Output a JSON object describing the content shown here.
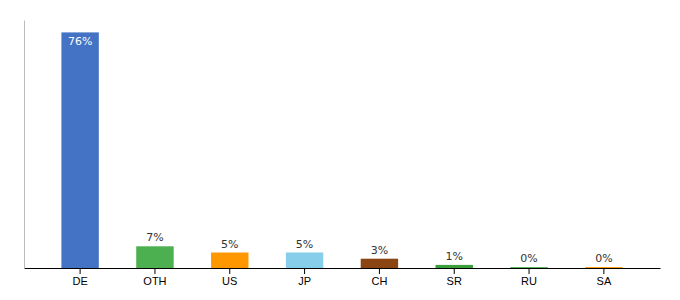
{
  "chart_data": {
    "type": "bar",
    "categories": [
      "DE",
      "OTH",
      "US",
      "JP",
      "CH",
      "SR",
      "RU",
      "SA"
    ],
    "values": [
      76,
      7,
      5,
      5,
      3,
      1,
      0.3,
      0.3
    ],
    "value_labels": [
      "76%",
      "7%",
      "5%",
      "5%",
      "3%",
      "1%",
      "0%",
      "0%"
    ],
    "colors": [
      "#4472c4",
      "#4caf50",
      "#ff9800",
      "#87ceeb",
      "#8B4513",
      "#3a9e3a",
      "#4caf50",
      "#ff9800"
    ],
    "ylim": [
      0,
      80
    ],
    "data_labels": true,
    "tick_labels": "x"
  }
}
